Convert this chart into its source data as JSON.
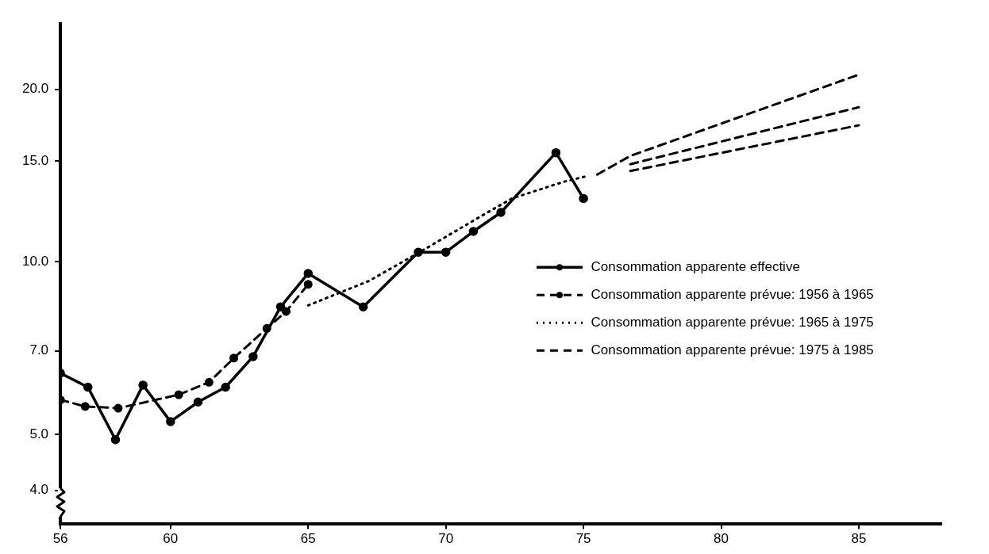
{
  "chart_data": {
    "type": "line",
    "log": "y",
    "xlim": [
      56,
      88
    ],
    "xticks": [
      56,
      60,
      65,
      70,
      75,
      80,
      85
    ],
    "ylim": [
      3.5,
      26
    ],
    "yticks": [
      {
        "value": 4,
        "label": "4.0"
      },
      {
        "value": 5,
        "label": "5.0"
      },
      {
        "value": 7,
        "label": "7.0"
      },
      {
        "value": 10,
        "label": "10.0"
      },
      {
        "value": 15,
        "label": "15.0"
      },
      {
        "value": 20,
        "label": "20.0"
      }
    ],
    "grid": false,
    "legend": "right",
    "series": [
      {
        "name": "Consommation apparente effective",
        "color": "#000000",
        "line_style": "solid",
        "marker": "circle",
        "x": [
          56,
          57,
          58,
          59,
          60,
          61,
          62,
          63,
          64,
          65,
          67,
          69,
          70,
          71,
          72,
          74,
          75
        ],
        "values": [
          6.4,
          6.05,
          4.9,
          6.1,
          5.27,
          5.7,
          6.05,
          6.84,
          8.35,
          9.55,
          8.35,
          10.4,
          10.4,
          11.3,
          12.2,
          15.5,
          12.9
        ]
      },
      {
        "name": "Consommation apparente prévue: 1956 à 1965",
        "color": "#000000",
        "line_style": "dashed",
        "marker": "circle",
        "x": [
          56,
          56.9,
          58.1,
          60.3,
          61.4,
          62.3,
          63.5,
          64.2,
          65
        ],
        "values": [
          5.75,
          5.6,
          5.56,
          5.87,
          6.17,
          6.8,
          7.66,
          8.2,
          9.14
        ]
      },
      {
        "name": "Consommation apparente prévue: 1965 à 1975",
        "color": "#000000",
        "line_style": "dotted",
        "marker": "none",
        "x": [
          65,
          67.2,
          69.2,
          71,
          72.4,
          74.3,
          75.1
        ],
        "values": [
          8.4,
          9.26,
          10.5,
          11.8,
          12.9,
          13.8,
          14.1
        ]
      },
      {
        "name": "Consommation apparente prévue: 1975 à 1985",
        "color": "#000000",
        "line_style": "dashed",
        "marker": "none",
        "x": [
          75.5,
          76.7,
          85
        ],
        "values": [
          14.2,
          15.3,
          21.2
        ]
      },
      {
        "color": "#000000",
        "line_style": "dashed",
        "marker": "none",
        "x": [
          76.7,
          85
        ],
        "values": [
          14.8,
          18.6
        ]
      },
      {
        "color": "#000000",
        "line_style": "dashed",
        "marker": "none",
        "x": [
          76.7,
          85
        ],
        "values": [
          14.4,
          17.3
        ]
      }
    ]
  }
}
